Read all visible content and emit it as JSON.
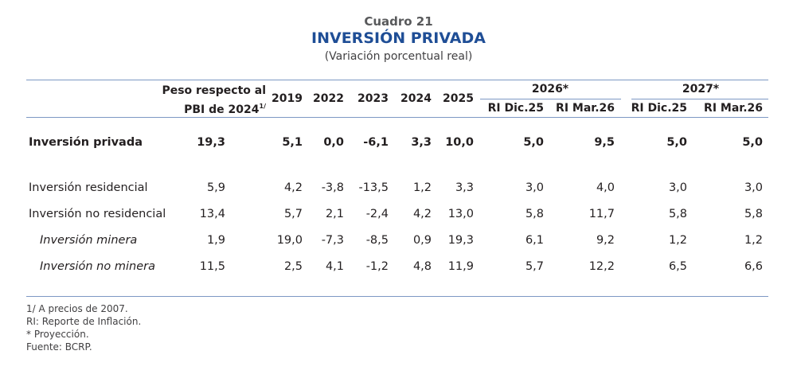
{
  "title": {
    "number": "Cuadro 21",
    "main": "INVERSIÓN PRIVADA",
    "subtitle": "(Variación porcentual real)"
  },
  "header": {
    "weight_line1": "Peso respecto al",
    "weight_line2": "PBI de 2024",
    "weight_sup": "1/",
    "years": [
      "2019",
      "2022",
      "2023",
      "2024",
      "2025"
    ],
    "groups": [
      {
        "label": "2026*",
        "sub": [
          "RI Dic.25",
          "RI Mar.26"
        ]
      },
      {
        "label": "2027*",
        "sub": [
          "RI Dic.25",
          "RI Mar.26"
        ]
      }
    ]
  },
  "rows": [
    {
      "label": "Inversión privada",
      "style": "bold",
      "values": [
        "19,3",
        "5,1",
        "0,0",
        "-6,1",
        "3,3",
        "10,0",
        "5,0",
        "9,5",
        "5,0",
        "5,0"
      ]
    },
    {
      "label": "Inversión residencial",
      "style": "normal",
      "values": [
        "5,9",
        "4,2",
        "-3,8",
        "-13,5",
        "1,2",
        "3,3",
        "3,0",
        "4,0",
        "3,0",
        "3,0"
      ]
    },
    {
      "label": "Inversión no residencial",
      "style": "normal",
      "values": [
        "13,4",
        "5,7",
        "2,1",
        "-2,4",
        "4,2",
        "13,0",
        "5,8",
        "11,7",
        "5,8",
        "5,8"
      ]
    },
    {
      "label": "Inversión minera",
      "style": "italic",
      "values": [
        "1,9",
        "19,0",
        "-7,3",
        "-8,5",
        "0,9",
        "19,3",
        "6,1",
        "9,2",
        "1,2",
        "1,2"
      ]
    },
    {
      "label": "Inversión no minera",
      "style": "italic",
      "values": [
        "11,5",
        "2,5",
        "4,1",
        "-1,2",
        "4,8",
        "11,9",
        "5,7",
        "12,2",
        "6,5",
        "6,6"
      ]
    }
  ],
  "notes": [
    "1/ A precios de 2007.",
    "RI: Reporte de Inflación.",
    "* Proyección.",
    "Fuente: BCRP."
  ]
}
